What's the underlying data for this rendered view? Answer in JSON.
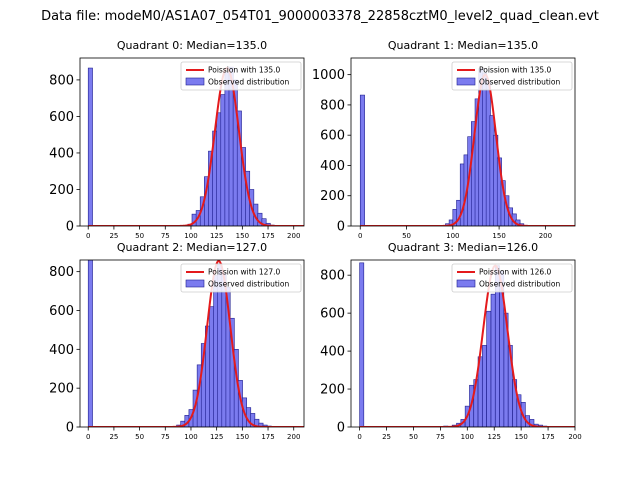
{
  "suptitle": "Data file: modeM0/AS1A07_054T01_9000003378_22858cztM0_level2_quad_clean.evt",
  "colors": {
    "bar_fill": "#7b7bef",
    "bar_edge": "#1f1f8f",
    "fit_line": "#e41a1c",
    "axes": "#000000"
  },
  "chart_data": [
    {
      "type": "bar",
      "title": "Quadrant 0: Median=135.0",
      "xlim": [
        -8,
        210
      ],
      "ylim": [
        0,
        920
      ],
      "xticks": [
        0,
        25,
        50,
        75,
        100,
        125,
        150,
        175,
        200
      ],
      "yticks": [
        0,
        200,
        400,
        600,
        800
      ],
      "bin_width": 4.2,
      "bins": [
        [
          0,
          865
        ],
        [
          97,
          10
        ],
        [
          101,
          65
        ],
        [
          105,
          85
        ],
        [
          109,
          160
        ],
        [
          113,
          270
        ],
        [
          117,
          410
        ],
        [
          121,
          520
        ],
        [
          125,
          620
        ],
        [
          129,
          720
        ],
        [
          133,
          840
        ],
        [
          137,
          870
        ],
        [
          141,
          800
        ],
        [
          145,
          630
        ],
        [
          149,
          430
        ],
        [
          153,
          300
        ],
        [
          157,
          200
        ],
        [
          161,
          120
        ],
        [
          165,
          70
        ],
        [
          169,
          40
        ],
        [
          173,
          15
        ],
        [
          177,
          5
        ]
      ],
      "poisson_mean": 135,
      "poisson_peak": 865,
      "legend": {
        "fit": "Poission with 135.0",
        "observed": "Observed distribution",
        "loc": "upper right"
      }
    },
    {
      "type": "bar",
      "title": "Quadrant 1: Median=135.0",
      "xlim": [
        -10,
        232
      ],
      "ylim": [
        0,
        1110
      ],
      "xticks": [
        0,
        50,
        100,
        150,
        200
      ],
      "yticks": [
        0,
        200,
        400,
        600,
        800,
        1000
      ],
      "bin_width": 4.7,
      "bins": [
        [
          0,
          865
        ],
        [
          92,
          15
        ],
        [
          96,
          40
        ],
        [
          100,
          110
        ],
        [
          104,
          170
        ],
        [
          108,
          410
        ],
        [
          112,
          470
        ],
        [
          116,
          590
        ],
        [
          120,
          690
        ],
        [
          124,
          840
        ],
        [
          128,
          1040
        ],
        [
          132,
          1010
        ],
        [
          136,
          950
        ],
        [
          140,
          730
        ],
        [
          144,
          600
        ],
        [
          148,
          450
        ],
        [
          152,
          300
        ],
        [
          156,
          200
        ],
        [
          160,
          120
        ],
        [
          164,
          80
        ],
        [
          168,
          40
        ],
        [
          172,
          15
        ],
        [
          176,
          5
        ],
        [
          212,
          3
        ]
      ],
      "poisson_mean": 135,
      "poisson_peak": 1000,
      "legend": {
        "fit": "Poission with 135.0",
        "observed": "Observed distribution",
        "loc": "upper right"
      }
    },
    {
      "type": "bar",
      "title": "Quadrant 2: Median=127.0",
      "xlim": [
        -8,
        210
      ],
      "ylim": [
        0,
        860
      ],
      "xticks": [
        0,
        25,
        50,
        75,
        100,
        125,
        150,
        175,
        200
      ],
      "yticks": [
        0,
        200,
        400,
        600,
        800
      ],
      "bin_width": 4.2,
      "bins": [
        [
          0,
          860
        ],
        [
          86,
          10
        ],
        [
          90,
          30
        ],
        [
          94,
          60
        ],
        [
          98,
          90
        ],
        [
          102,
          190
        ],
        [
          106,
          320
        ],
        [
          110,
          430
        ],
        [
          114,
          520
        ],
        [
          118,
          620
        ],
        [
          122,
          780
        ],
        [
          126,
          840
        ],
        [
          130,
          790
        ],
        [
          134,
          720
        ],
        [
          138,
          560
        ],
        [
          142,
          400
        ],
        [
          146,
          240
        ],
        [
          150,
          150
        ],
        [
          154,
          100
        ],
        [
          158,
          70
        ],
        [
          162,
          40
        ],
        [
          166,
          20
        ],
        [
          170,
          10
        ],
        [
          174,
          5
        ]
      ],
      "poisson_mean": 127,
      "poisson_peak": 855,
      "legend": {
        "fit": "Poission with 127.0",
        "observed": "Observed distribution",
        "loc": "upper right"
      }
    },
    {
      "type": "bar",
      "title": "Quadrant 3: Median=126.0",
      "xlim": [
        -8,
        200
      ],
      "ylim": [
        0,
        880
      ],
      "xticks": [
        0,
        25,
        50,
        75,
        100,
        125,
        150,
        175,
        200
      ],
      "yticks": [
        0,
        200,
        400,
        600,
        800
      ],
      "bin_width": 3.9,
      "bins": [
        [
          0,
          865
        ],
        [
          78,
          5
        ],
        [
          86,
          10
        ],
        [
          90,
          20
        ],
        [
          94,
          40
        ],
        [
          98,
          110
        ],
        [
          102,
          220
        ],
        [
          106,
          250
        ],
        [
          110,
          370
        ],
        [
          114,
          430
        ],
        [
          118,
          610
        ],
        [
          122,
          700
        ],
        [
          126,
          850
        ],
        [
          130,
          820
        ],
        [
          134,
          600
        ],
        [
          138,
          430
        ],
        [
          142,
          250
        ],
        [
          146,
          170
        ],
        [
          150,
          130
        ],
        [
          154,
          60
        ],
        [
          158,
          40
        ],
        [
          162,
          15
        ],
        [
          166,
          10
        ],
        [
          170,
          5
        ]
      ],
      "poisson_mean": 126,
      "poisson_peak": 850,
      "legend": {
        "fit": "Poission with 126.0",
        "observed": "Observed distribution",
        "loc": "upper right"
      }
    }
  ]
}
